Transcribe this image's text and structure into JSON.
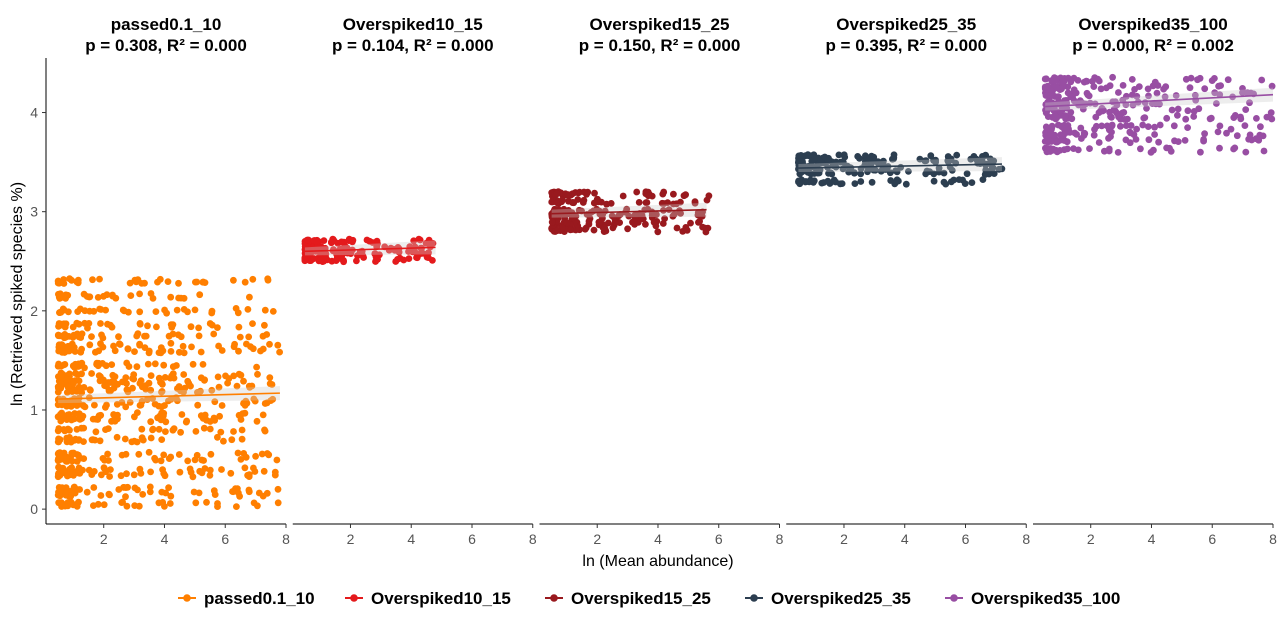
{
  "chart_data": {
    "type": "scatter",
    "facet_layout": "1 row x 5 columns, shared y axis",
    "xlabel": "ln (Mean abundance)",
    "ylabel": "ln (Retrieved spiked species %)",
    "xlim": [
      0.1,
      8.0
    ],
    "ylim": [
      -0.15,
      4.55
    ],
    "x_ticks": [
      2,
      4,
      6,
      8
    ],
    "y_ticks": [
      0,
      1,
      2,
      3,
      4
    ],
    "grid": false,
    "legend_position": "bottom",
    "panels": [
      {
        "name": "passed0.1_10",
        "title": "passed0.1_10",
        "subtitle": "p = 0.308, R² = 0.000",
        "color": "#FF7F00",
        "x_range": [
          0.5,
          7.8
        ],
        "y_range": [
          0.05,
          2.38
        ],
        "y_bands": [
          2.3,
          2.15,
          2.0,
          1.85,
          1.75,
          1.65,
          1.6,
          1.45,
          1.35,
          1.3,
          1.25,
          1.2,
          1.1,
          1.05,
          0.95,
          0.9,
          0.8,
          0.7,
          0.55,
          0.5,
          0.4,
          0.35,
          0.2,
          0.15,
          0.05
        ],
        "trend": {
          "x": [
            0.5,
            7.8
          ],
          "y": [
            1.11,
            1.17
          ]
        }
      },
      {
        "name": "Overspiked10_15",
        "title": "Overspiked10_15",
        "subtitle": "p = 0.104, R² = 0.000",
        "color": "#E41A1C",
        "x_range": [
          0.5,
          4.8
        ],
        "y_range": [
          2.48,
          2.72
        ],
        "y_bands": [
          2.7,
          2.63,
          2.58,
          2.52
        ],
        "trend": {
          "x": [
            0.5,
            4.8
          ],
          "y": [
            2.6,
            2.64
          ]
        }
      },
      {
        "name": "Overspiked15_25",
        "title": "Overspiked15_25",
        "subtitle": "p = 0.150, R² = 0.000",
        "color": "#99191E",
        "x_range": [
          0.5,
          5.8
        ],
        "y_range": [
          2.78,
          3.2
        ],
        "y_bands": [
          3.18,
          3.1,
          3.0,
          2.95,
          2.88,
          2.82
        ],
        "trend": {
          "x": [
            0.5,
            5.6
          ],
          "y": [
            2.98,
            3.02
          ]
        }
      },
      {
        "name": "Overspiked25_35",
        "title": "Overspiked25_35",
        "subtitle": "p = 0.395, R² = 0.000",
        "color": "#2C3E50",
        "x_range": [
          0.5,
          7.2
        ],
        "y_range": [
          3.28,
          3.58
        ],
        "y_bands": [
          3.55,
          3.5,
          3.45,
          3.4,
          3.3
        ],
        "trend": {
          "x": [
            0.5,
            7.2
          ],
          "y": [
            3.44,
            3.48
          ]
        }
      },
      {
        "name": "Overspiked35_100",
        "title": "Overspiked35_100",
        "subtitle": "p = 0.000, R² = 0.002",
        "color": "#984EA3",
        "x_range": [
          0.5,
          8.0
        ],
        "y_range": [
          3.6,
          4.35
        ],
        "y_bands": [
          4.33,
          4.25,
          4.18,
          4.1,
          4.02,
          3.95,
          3.85,
          3.78,
          3.72,
          3.62
        ],
        "trend": {
          "x": [
            0.5,
            8.0
          ],
          "y": [
            4.06,
            4.18
          ]
        }
      }
    ]
  },
  "legend": {
    "items": [
      {
        "label": "passed0.1_10",
        "color": "#FF7F00"
      },
      {
        "label": "Overspiked10_15",
        "color": "#E41A1C"
      },
      {
        "label": "Overspiked15_25",
        "color": "#99191E"
      },
      {
        "label": "Overspiked25_35",
        "color": "#2C3E50"
      },
      {
        "label": "Overspiked35_100",
        "color": "#984EA3"
      }
    ]
  }
}
